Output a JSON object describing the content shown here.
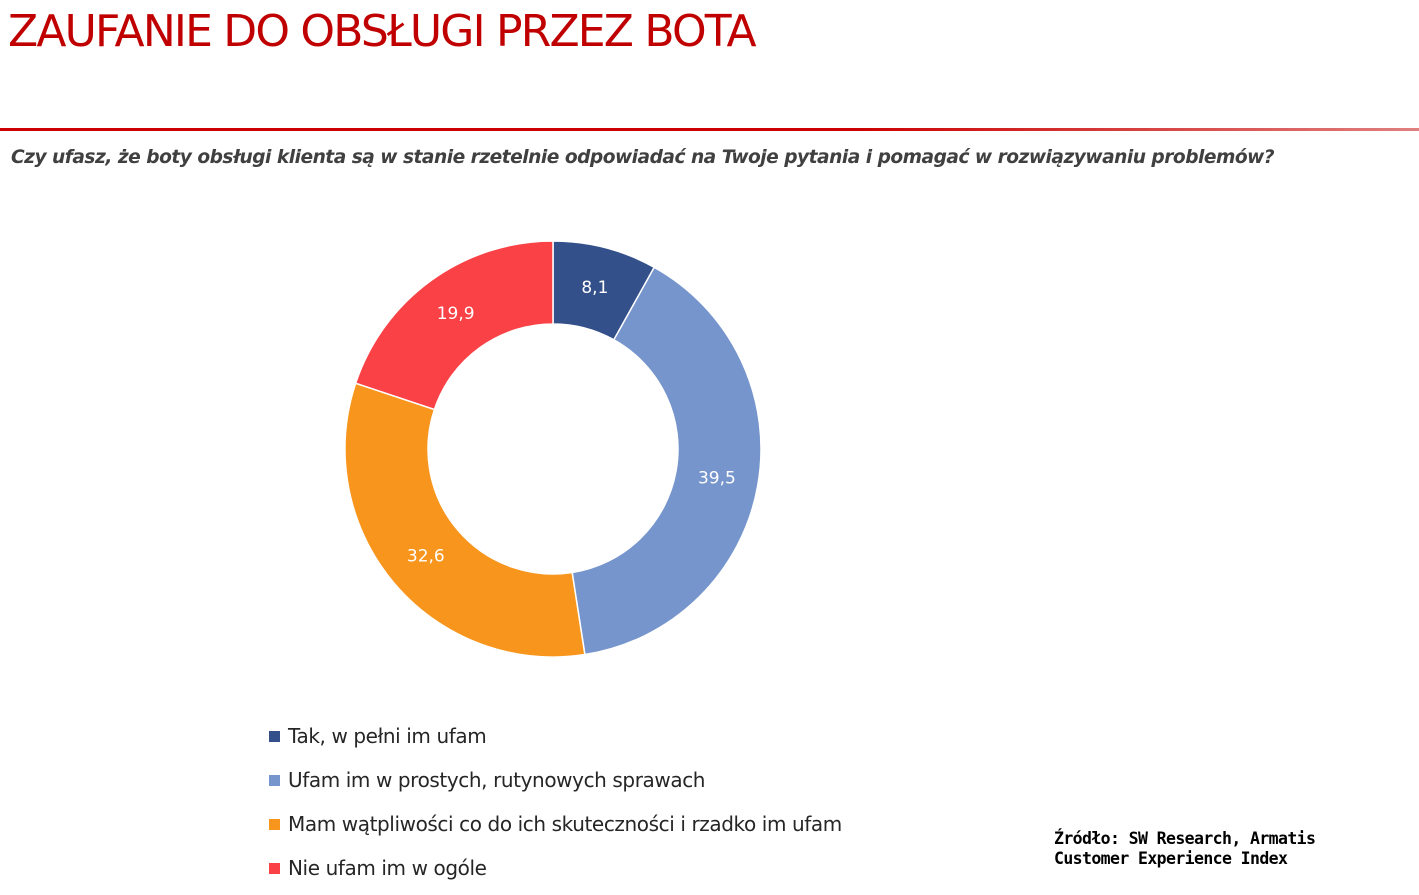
{
  "header": {
    "title": "ZAUFANIE DO OBSŁUGI PRZEZ BOTA",
    "question": "Czy ufasz, że boty obsługi klienta są w stanie rzetelnie odpowiadać na Twoje pytania i pomagać w rozwiązywaniu problemów?"
  },
  "colors": {
    "title": "#c00000",
    "divider": "#cc0000"
  },
  "chart_data": {
    "type": "pie",
    "subtype": "donut",
    "title": "Czy ufasz, że boty obsługi klienta są w stanie rzetelnie odpowiadać na Twoje pytania i pomagać w rozwiązywaniu problemów?",
    "unit": "%",
    "start_angle": "12 o'clock, clockwise",
    "legend_position": "bottom",
    "slices": [
      {
        "label": "Tak, w pełni im ufam",
        "value": 8.1,
        "display": "8,1",
        "color": "#34508a"
      },
      {
        "label": "Ufam im w prostych, rutynowych sprawach",
        "value": 39.5,
        "display": "39,5",
        "color": "#7595cc"
      },
      {
        "label": "Mam wątpliwości co do ich skuteczności i rzadko im ufam",
        "value": 32.6,
        "display": "32,6",
        "color": "#f7951c"
      },
      {
        "label": "Nie ufam im w ogóle",
        "value": 19.9,
        "display": "19,9",
        "color": "#f94146"
      }
    ]
  },
  "footer": {
    "source_line1": "Źródło: SW Research, Armatis",
    "source_line2": "Customer Experience Index"
  }
}
